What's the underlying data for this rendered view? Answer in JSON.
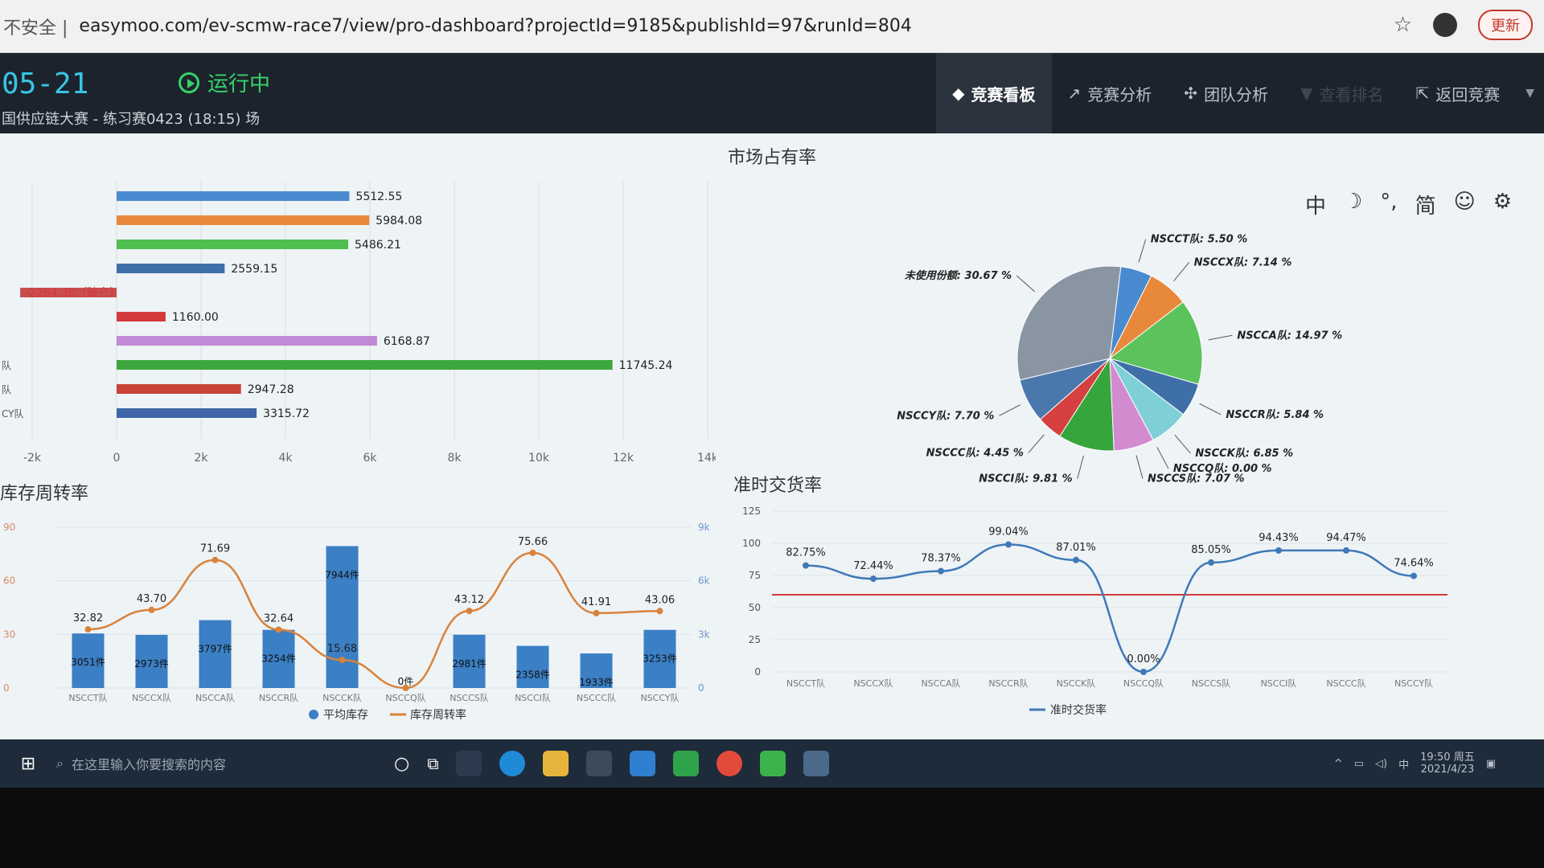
{
  "browser": {
    "insecure_label": "不安全 |",
    "url": "easymoo.com/ev-scmw-race7/view/pro-dashboard?projectId=9185&publishId=97&runId=804",
    "star_icon": "star-icon",
    "update_label": "更新"
  },
  "header": {
    "time": "05-21",
    "status": "运行中",
    "subtitle": "国供应链大赛 - 练习赛0423 (18:15) 场",
    "nav": [
      {
        "label": "竞赛看板",
        "icon": "◆"
      },
      {
        "label": "竞赛分析",
        "icon": "↗"
      },
      {
        "label": "团队分析",
        "icon": "✣"
      },
      {
        "label": "查看排名",
        "icon": "▼"
      },
      {
        "label": "返回竞赛",
        "icon": "⇱"
      }
    ]
  },
  "toolbar": {
    "items": [
      "中",
      "☽",
      "°,",
      "简",
      "☺",
      "⚙"
    ]
  },
  "market_share": {
    "title": "市场占有率",
    "bars": {
      "type": "bar",
      "labels": [
        "5512.55",
        "5984.08",
        "5486.21",
        "2559.15",
        "-2284.30（破产）",
        "1160.00",
        "6168.87",
        "11745.24",
        "2947.28",
        "3315.72"
      ],
      "values": [
        5512.55,
        5984.08,
        5486.21,
        2559.15,
        -2284.3,
        1160.0,
        6168.87,
        11745.24,
        2947.28,
        3315.72
      ],
      "colors": [
        "#4a8ad1",
        "#e8883a",
        "#4fbf4f",
        "#3f6fa8",
        "#c94f4f",
        "#d33a3a",
        "#c08ad6",
        "#3da63d",
        "#c9433a",
        "#3e66a6"
      ],
      "row_labels": [
        "",
        "",
        "",
        "",
        "",
        "",
        "",
        "队",
        "队",
        "CY队"
      ],
      "xticks": [
        "-2k",
        "0",
        "2k",
        "4k",
        "6k",
        "8k",
        "10k",
        "12k",
        "14k"
      ],
      "xlim": [
        -2000,
        14000
      ]
    },
    "pie": {
      "type": "pie",
      "slices": [
        {
          "name": "NSCCT队",
          "label": "NSCCT队: 5.50 %",
          "value": 5.5,
          "color": "#4a8ad1"
        },
        {
          "name": "NSCCX队",
          "label": "NSCCX队: 7.14 %",
          "value": 7.14,
          "color": "#e8883a"
        },
        {
          "name": "NSCCA队",
          "label": "NSCCA队: 14.97 %",
          "value": 14.97,
          "color": "#5cc25c"
        },
        {
          "name": "NSCCR队",
          "label": "NSCCR队: 5.84 %",
          "value": 5.84,
          "color": "#3f6fa8"
        },
        {
          "name": "NSCCK队",
          "label": "NSCCK队: 6.85 %",
          "value": 6.85,
          "color": "#7fd0d6"
        },
        {
          "name": "NSCCQ队",
          "label": "NSCCQ队: 0.00 %",
          "value": 0.0,
          "color": "#c94f4f"
        },
        {
          "name": "NSCCS队",
          "label": "NSCCS队: 7.07 %",
          "value": 7.07,
          "color": "#d38bd0"
        },
        {
          "name": "NSCCI队",
          "label": "NSCCI队: 9.81 %",
          "value": 9.81,
          "color": "#35a53c"
        },
        {
          "name": "NSCCC队",
          "label": "NSCCC队: 4.45 %",
          "value": 4.45,
          "color": "#d64040"
        },
        {
          "name": "NSCCY队",
          "label": "NSCCY队: 7.70 %",
          "value": 7.7,
          "color": "#4a78ad"
        },
        {
          "name": "未使用份额",
          "label": "未使用份额: 30.67 %",
          "value": 30.67,
          "color": "#8a95a3"
        }
      ]
    }
  },
  "inventory": {
    "title": "库存周转率",
    "chart_data": {
      "type": "bar",
      "categories": [
        "NSCCT队",
        "NSCCX队",
        "NSCCA队",
        "NSCCR队",
        "NSCCK队",
        "NSCCQ队",
        "NSCCS队",
        "NSCCI队",
        "NSCCC队",
        "NSCCY队"
      ],
      "series": [
        {
          "name": "平均库存",
          "values": [
            3051,
            2973,
            3797,
            3254,
            7944,
            0,
            2981,
            2358,
            1933,
            3253
          ],
          "labels": [
            "3051件",
            "2973件",
            "3797件",
            "3254件",
            "7944件",
            "0件",
            "2981件",
            "2358件",
            "1933件",
            "3253件"
          ]
        },
        {
          "name": "库存周转率",
          "values": [
            32.82,
            43.7,
            71.69,
            32.64,
            15.68,
            0,
            43.12,
            75.66,
            41.91,
            43.06
          ],
          "labels": [
            "32.82",
            "43.70",
            "71.69",
            "32.64",
            "15.68",
            "",
            "43.12",
            "75.66",
            "41.91",
            "43.06"
          ]
        }
      ],
      "y_left_ticks": [
        "0",
        "30",
        "60",
        "90"
      ],
      "y_right_ticks": [
        "0",
        "3k",
        "6k",
        "9k"
      ],
      "ylim_left": [
        0,
        90
      ],
      "ylim_right": [
        0,
        9000
      ]
    }
  },
  "ontime": {
    "title": "准时交货率",
    "chart_data": {
      "type": "line",
      "categories": [
        "NSCCT队",
        "NSCCX队",
        "NSCCA队",
        "NSCCR队",
        "NSCCK队",
        "NSCCQ队",
        "NSCCS队",
        "NSCCI队",
        "NSCCC队",
        "NSCCY队"
      ],
      "series": [
        {
          "name": "准时交货率",
          "values": [
            82.75,
            72.44,
            78.37,
            99.04,
            87.01,
            0.0,
            85.05,
            94.43,
            94.47,
            74.64
          ],
          "labels": [
            "82.75%",
            "72.44%",
            "78.37%",
            "99.04%",
            "87.01%",
            "0.00%",
            "85.05%",
            "94.43%",
            "94.47%",
            "74.64%"
          ]
        }
      ],
      "reference_line": 60,
      "yticks": [
        "0",
        "25",
        "50",
        "75",
        "100",
        "125"
      ],
      "ylim": [
        0,
        125
      ]
    }
  },
  "taskbar": {
    "search_placeholder": "在这里输入你要搜索的内容",
    "time": "19:50 周五",
    "date": "2021/4/23",
    "ime": "中"
  }
}
